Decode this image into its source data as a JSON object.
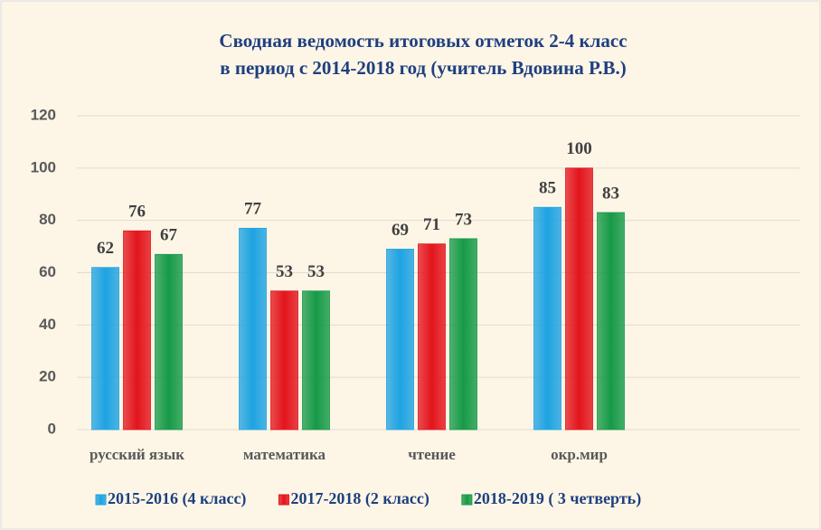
{
  "chart_data": {
    "type": "bar",
    "title": [
      "Сводная ведомость итоговых отметок 2-4 класс",
      "в период с 2014-2018 год (учитель Вдовина Р.В.)"
    ],
    "categories": [
      "русский язык",
      "математика",
      "чтение",
      "окр.мир",
      null
    ],
    "series": [
      {
        "name": "2015-2016 (4 класс)",
        "color": "#1ea3e2",
        "values": [
          62,
          77,
          69,
          85,
          null
        ]
      },
      {
        "name": "2017-2018 (2 класс)",
        "color": "#e3141c",
        "values": [
          76,
          53,
          71,
          100,
          null
        ]
      },
      {
        "name": "2018-2019 ( 3 четверть)",
        "color": "#169a47",
        "values": [
          67,
          53,
          73,
          83,
          null
        ]
      }
    ],
    "ylim": [
      0,
      120
    ],
    "yticks": [
      0,
      20,
      40,
      60,
      80,
      100,
      120
    ],
    "grid": true,
    "legend": "bottom"
  }
}
